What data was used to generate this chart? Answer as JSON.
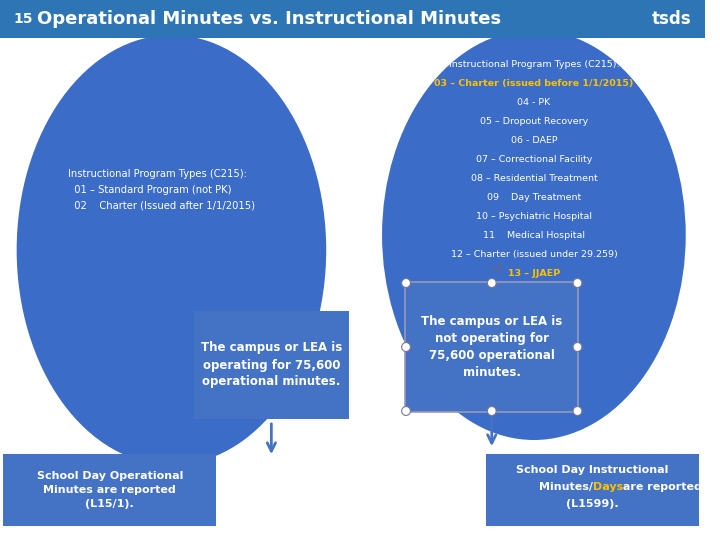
{
  "title": "Operational Minutes vs. Instructional Minutes",
  "slide_num": "15",
  "header_bg": "#2E75B6",
  "header_text_color": "#FFFFFF",
  "bg_color": "#FFFFFF",
  "circle_color": "#3A6CC8",
  "box_color": "#4472C4",
  "bottom_box_color": "#4472C4",
  "arrow_color": "#4472C4",
  "left_circle_text": "Instructional Program Types (C215):\n  01 – Standard Program (not PK)\n  02    Charter (Issued after 1/1/2015)",
  "right_circle_text_white": [
    "Instructional Program Types (C215):",
    "04 - PK",
    "05 – Dropout Recovery",
    "06 - DAEP",
    "07 – Correctional Facility",
    "08 – Residential Treatment",
    "09    Day Treatment",
    "10 – Psychiatric Hospital",
    "11    Medical Hospital",
    "12 – Charter (issued under 29.259)"
  ],
  "right_circle_text_orange_1": "03 – Charter (issued before 1/1/2015)",
  "right_circle_text_orange_2": "13 – JJAEP",
  "left_box_text": "The campus or LEA is\noperating for 75,600\noperational minutes.",
  "right_box_text": "The campus or LEA is\nnot operating for\n75,600 operational\nminutes.",
  "left_bottom_text": "School Day Operational\nMinutes are reported\n(L15/1).",
  "right_bottom_text_pre": "School Day Instructional\nMinutes/",
  "right_bottom_text_days": "Days",
  "right_bottom_text_post": " are reported\n(L1599).",
  "orange_color": "#FFC000",
  "text_color_white": "#FFFFFF",
  "tsds_text": "tsds"
}
